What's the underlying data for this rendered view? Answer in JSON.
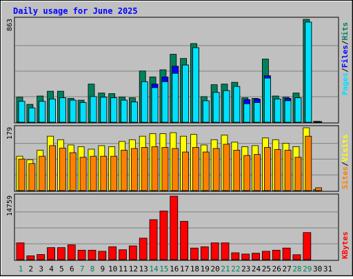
{
  "title": "Daily usage for June 2025",
  "colors": {
    "background": "#C0C0C0",
    "title": "#0000FF",
    "hits": "#00805C",
    "files": "#0000FF",
    "pages": "#00E0FF",
    "visits": "#FFFF00",
    "sites": "#FF8000",
    "kbytes": "#FF0000",
    "weekend_label": "#00805C",
    "label_dark": "#000000"
  },
  "legend": {
    "pages": "Pages",
    "files": "Files",
    "hits": "Hits",
    "visits": "Visits",
    "sites": "Sites",
    "kbytes": "KBytes",
    "sep": "/"
  },
  "chart_data": [
    {
      "type": "bar",
      "panel": "hits-files-pages",
      "max_label": "863",
      "ylim": [
        0,
        863
      ],
      "grid": true,
      "categories": [
        "1",
        "2",
        "3",
        "4",
        "5",
        "6",
        "7",
        "8",
        "9",
        "10",
        "11",
        "12",
        "13",
        "14",
        "15",
        "16",
        "17",
        "18",
        "19",
        "20",
        "21",
        "22",
        "23",
        "24",
        "25",
        "26",
        "27",
        "28",
        "29",
        "30",
        "31"
      ],
      "series": [
        {
          "name": "Hits",
          "values": [
            210,
            150,
            220,
            260,
            260,
            200,
            185,
            320,
            245,
            240,
            210,
            205,
            430,
            380,
            440,
            570,
            535,
            660,
            215,
            315,
            320,
            335,
            205,
            200,
            530,
            220,
            210,
            245,
            863,
            8,
            0
          ]
        },
        {
          "name": "Files",
          "values": [
            175,
            120,
            175,
            195,
            205,
            185,
            165,
            215,
            210,
            205,
            185,
            170,
            340,
            320,
            380,
            470,
            480,
            625,
            180,
            250,
            265,
            220,
            190,
            195,
            390,
            195,
            200,
            205,
            840,
            5,
            0
          ]
        },
        {
          "name": "Pages",
          "values": [
            175,
            120,
            175,
            195,
            205,
            185,
            165,
            215,
            210,
            205,
            185,
            170,
            340,
            290,
            340,
            410,
            480,
            625,
            180,
            250,
            265,
            300,
            155,
            165,
            370,
            195,
            180,
            205,
            840,
            5,
            0
          ]
        }
      ]
    },
    {
      "type": "bar",
      "panel": "visits-sites",
      "max_label": "179",
      "ylim": [
        0,
        179
      ],
      "grid": true,
      "categories": [
        "1",
        "2",
        "3",
        "4",
        "5",
        "6",
        "7",
        "8",
        "9",
        "10",
        "11",
        "12",
        "13",
        "14",
        "15",
        "16",
        "17",
        "18",
        "19",
        "20",
        "21",
        "22",
        "23",
        "24",
        "25",
        "26",
        "27",
        "28",
        "29",
        "30",
        "31"
      ],
      "series": [
        {
          "name": "Visits",
          "values": [
            98,
            88,
            115,
            155,
            145,
            130,
            125,
            118,
            128,
            125,
            140,
            145,
            155,
            162,
            162,
            165,
            155,
            160,
            130,
            145,
            158,
            138,
            125,
            128,
            150,
            145,
            135,
            125,
            179,
            3,
            0
          ]
        },
        {
          "name": "Sites",
          "values": [
            90,
            77,
            98,
            128,
            121,
            108,
            95,
            98,
            98,
            98,
            115,
            120,
            123,
            125,
            123,
            120,
            110,
            123,
            110,
            120,
            132,
            115,
            100,
            103,
            123,
            117,
            115,
            95,
            155,
            8,
            0
          ]
        }
      ]
    },
    {
      "type": "bar",
      "panel": "kbytes",
      "max_label": "14759",
      "ylim": [
        0,
        14759
      ],
      "grid": true,
      "categories": [
        "1",
        "2",
        "3",
        "4",
        "5",
        "6",
        "7",
        "8",
        "9",
        "10",
        "11",
        "12",
        "13",
        "14",
        "15",
        "16",
        "17",
        "18",
        "19",
        "20",
        "21",
        "22",
        "23",
        "24",
        "25",
        "26",
        "27",
        "28",
        "29",
        "30",
        "31"
      ],
      "series": [
        {
          "name": "KBytes",
          "values": [
            3900,
            900,
            1200,
            2800,
            2800,
            3450,
            2200,
            2200,
            1950,
            3000,
            2300,
            3200,
            5000,
            9300,
            11300,
            14759,
            8900,
            2700,
            3000,
            3900,
            3900,
            1600,
            1300,
            1500,
            1950,
            2200,
            2700,
            1150,
            6300,
            0,
            0
          ]
        }
      ]
    }
  ],
  "x_axis": {
    "labels": [
      "1",
      "2",
      "3",
      "4",
      "5",
      "6",
      "7",
      "8",
      "9",
      "10",
      "11",
      "12",
      "13",
      "14",
      "15",
      "16",
      "17",
      "18",
      "19",
      "20",
      "21",
      "22",
      "23",
      "24",
      "25",
      "26",
      "27",
      "28",
      "29",
      "30",
      "31"
    ],
    "weekend_days": [
      "1",
      "7",
      "8",
      "14",
      "15",
      "21",
      "22",
      "28",
      "29"
    ]
  }
}
